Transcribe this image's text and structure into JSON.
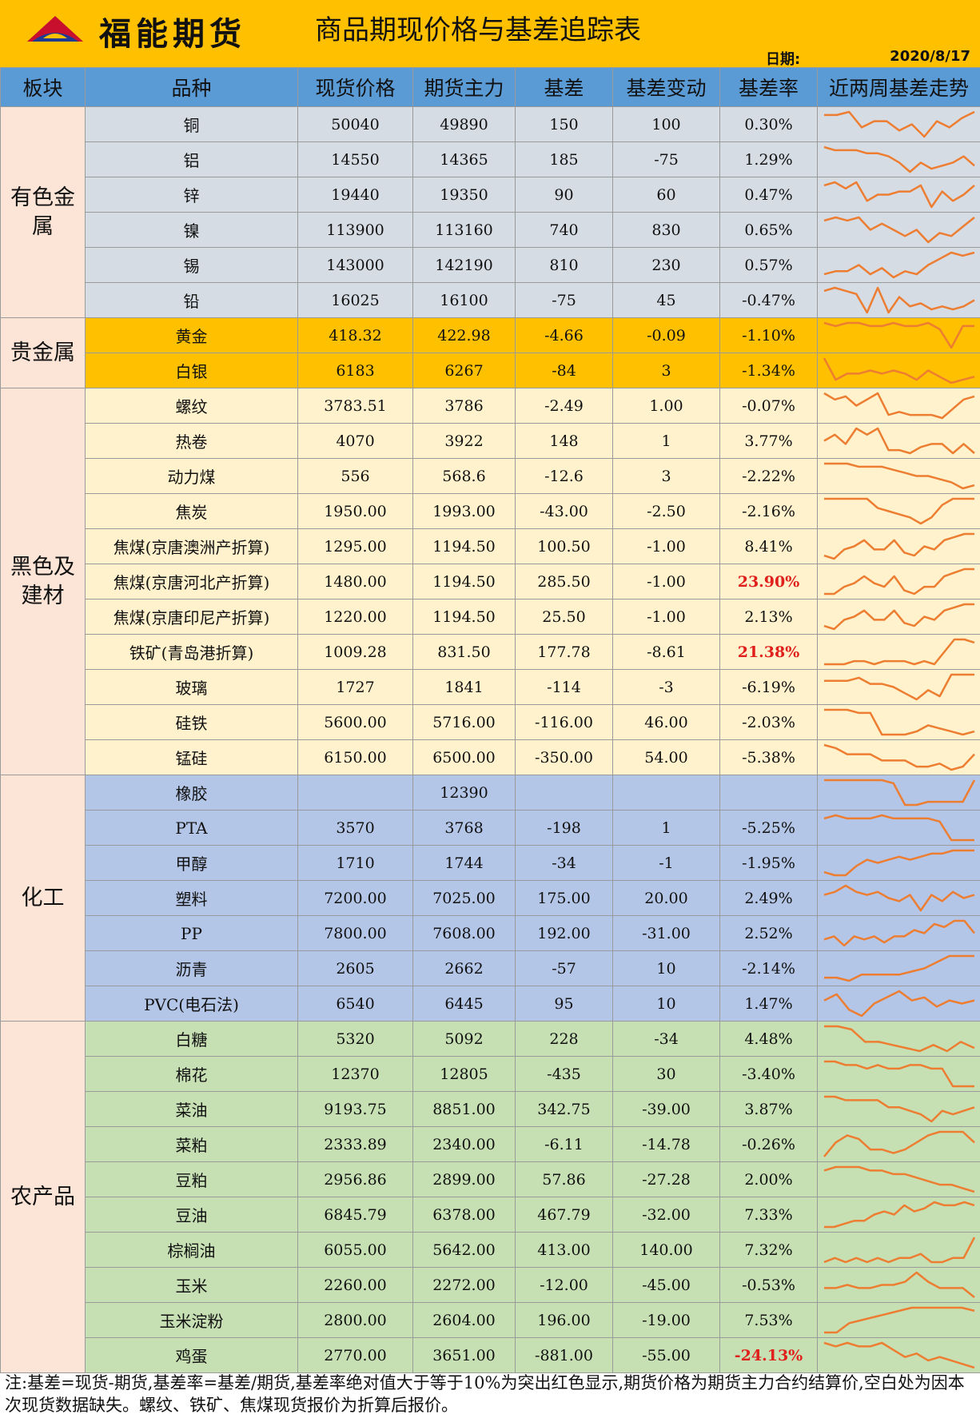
{
  "header": {
    "company": "福能期货",
    "title": "商品期现价格与基差追踪表",
    "date_label": "日期:",
    "date": "2020/8/17"
  },
  "columns": [
    "板块",
    "品种",
    "现货价格",
    "期货主力",
    "基差",
    "基差变动",
    "基差率",
    "近两周基差走势"
  ],
  "colors": {
    "header": "#5B9BD5",
    "band": "#FFC000",
    "sector_cell": "#FCE4D6",
    "metal": "#D6DCE4",
    "precious": "#FFC000",
    "black": "#FFF2CC",
    "chem": "#B4C6E7",
    "agri": "#C6E0B4",
    "sparkline": "#ED7D31",
    "highlight": "#E0201C"
  },
  "groups": [
    {
      "sector": "有色金属",
      "theme": "metal",
      "rows": [
        {
          "name": "铜",
          "spot": "50040",
          "futures": "49890",
          "basis": "150",
          "change": "100",
          "rate": "0.30%",
          "trend": [
            7,
            7,
            8,
            3,
            5,
            5,
            2,
            4,
            0,
            5,
            3,
            6,
            8
          ]
        },
        {
          "name": "铝",
          "spot": "14550",
          "futures": "14365",
          "basis": "185",
          "change": "-75",
          "rate": "1.29%",
          "trend": [
            8,
            7,
            7,
            7,
            6,
            6,
            5,
            3,
            0,
            3,
            1,
            2,
            3,
            5,
            2
          ]
        },
        {
          "name": "锌",
          "spot": "19440",
          "futures": "19350",
          "basis": "90",
          "change": "60",
          "rate": "0.47%",
          "trend": [
            7,
            8,
            6,
            8,
            2,
            4,
            4,
            5,
            5,
            7,
            0,
            5,
            2,
            4,
            7
          ]
        },
        {
          "name": "镍",
          "spot": "113900",
          "futures": "113160",
          "basis": "740",
          "change": "830",
          "rate": "0.65%",
          "trend": [
            7,
            8,
            7,
            8,
            4,
            6,
            4,
            2,
            4,
            0,
            3,
            2,
            5,
            8
          ]
        },
        {
          "name": "锡",
          "spot": "143000",
          "futures": "142190",
          "basis": "810",
          "change": "230",
          "rate": "0.57%",
          "trend": [
            1,
            2,
            2,
            4,
            1,
            3,
            0,
            2,
            1,
            4,
            6,
            8,
            7,
            8
          ]
        },
        {
          "name": "铅",
          "spot": "16025",
          "futures": "16100",
          "basis": "-75",
          "change": "45",
          "rate": "-0.47%",
          "trend": [
            7,
            8,
            7,
            6,
            0,
            8,
            0,
            5,
            2,
            3,
            1,
            2,
            1,
            2,
            4
          ]
        }
      ]
    },
    {
      "sector": "贵金属",
      "theme": "prec",
      "rows": [
        {
          "name": "黄金",
          "spot": "418.32",
          "futures": "422.98",
          "basis": "-4.66",
          "change": "-0.09",
          "rate": "-1.10%",
          "trend": [
            8,
            7,
            8,
            8,
            7,
            7,
            8,
            7,
            7,
            8,
            6,
            0,
            7,
            7
          ]
        },
        {
          "name": "白银",
          "spot": "6183",
          "futures": "6267",
          "basis": "-84",
          "change": "3",
          "rate": "-1.34%",
          "trend": [
            8,
            1,
            3,
            3,
            4,
            3,
            4,
            3,
            1,
            4,
            2,
            0,
            1,
            2
          ]
        }
      ]
    },
    {
      "sector": "黑色及建材",
      "theme": "black",
      "rows": [
        {
          "name": "螺纹",
          "spot": "3783.51",
          "futures": "3786",
          "basis": "-2.49",
          "change": "1.00",
          "rate": "-0.07%",
          "trend": [
            8,
            6,
            7,
            4,
            6,
            8,
            1,
            2,
            1,
            1,
            1,
            0,
            3,
            6,
            7
          ]
        },
        {
          "name": "热卷",
          "spot": "4070",
          "futures": "3922",
          "basis": "148",
          "change": "1",
          "rate": "3.77%",
          "trend": [
            4,
            6,
            3,
            8,
            6,
            8,
            1,
            1,
            0,
            2,
            3,
            3,
            0,
            3,
            0
          ]
        },
        {
          "name": "动力煤",
          "spot": "556",
          "futures": "568.6",
          "basis": "-12.6",
          "change": "3",
          "rate": "-2.22%",
          "trend": [
            8,
            8,
            8,
            7,
            7,
            7,
            6,
            5,
            4,
            4,
            3,
            2,
            0,
            1
          ]
        },
        {
          "name": "焦炭",
          "spot": "1950.00",
          "futures": "1993.00",
          "basis": "-43.00",
          "change": "-2.50",
          "rate": "-2.16%",
          "trend": [
            8,
            8,
            8,
            8,
            8,
            5,
            4,
            3,
            2,
            0,
            2,
            6,
            8,
            8,
            8
          ]
        },
        {
          "name": "焦煤(京唐澳洲产折算)",
          "spot": "1295.00",
          "futures": "1194.50",
          "basis": "100.50",
          "change": "-1.00",
          "rate": "8.41%",
          "trend": [
            1,
            0,
            3,
            4,
            6,
            3,
            3,
            6,
            2,
            1,
            4,
            3,
            6,
            7,
            8,
            8
          ]
        },
        {
          "name": "焦煤(京唐河北产折算)",
          "spot": "1480.00",
          "futures": "1194.50",
          "basis": "285.50",
          "change": "-1.00",
          "rate": "23.90%",
          "highlight": true,
          "trend": [
            1,
            1,
            3,
            4,
            6,
            4,
            3,
            6,
            2,
            1,
            3,
            3,
            6,
            7,
            8,
            8
          ]
        },
        {
          "name": "焦煤(京唐印尼产折算)",
          "spot": "1220.00",
          "futures": "1194.50",
          "basis": "25.50",
          "change": "-1.00",
          "rate": "2.13%",
          "trend": [
            1,
            0,
            3,
            4,
            6,
            3,
            3,
            6,
            2,
            1,
            4,
            3,
            6,
            7,
            8,
            8
          ]
        },
        {
          "name": "铁矿(青岛港折算)",
          "spot": "1009.28",
          "futures": "831.50",
          "basis": "177.78",
          "change": "-8.61",
          "rate": "21.38%",
          "highlight": true,
          "trend": [
            0,
            0,
            0,
            1,
            1,
            0,
            1,
            1,
            1,
            0,
            1,
            0,
            4,
            8,
            8,
            7
          ]
        },
        {
          "name": "玻璃",
          "spot": "1727",
          "futures": "1841",
          "basis": "-114",
          "change": "-3",
          "rate": "-6.19%",
          "trend": [
            6,
            6,
            6,
            7,
            5,
            5,
            4,
            2,
            0,
            3,
            1,
            8,
            8,
            8
          ]
        },
        {
          "name": "硅铁",
          "spot": "5600.00",
          "futures": "5716.00",
          "basis": "-116.00",
          "change": "46.00",
          "rate": "-2.03%",
          "trend": [
            8,
            8,
            8,
            7,
            7,
            0,
            0,
            0,
            1,
            3,
            2,
            1,
            0,
            1
          ]
        },
        {
          "name": "锰硅",
          "spot": "6150.00",
          "futures": "6500.00",
          "basis": "-350.00",
          "change": "54.00",
          "rate": "-5.38%",
          "trend": [
            8,
            7,
            5,
            5,
            5,
            3,
            3,
            3,
            1,
            1,
            2,
            0,
            1,
            5
          ]
        }
      ]
    },
    {
      "sector": "化工",
      "theme": "chem",
      "rows": [
        {
          "name": "橡胶",
          "spot": "",
          "futures": "12390",
          "basis": "",
          "change": "",
          "rate": "",
          "trend": [
            8,
            8,
            8,
            8,
            8,
            8,
            7,
            0,
            0,
            1,
            1,
            1,
            1,
            8
          ]
        },
        {
          "name": "PTA",
          "spot": "3570",
          "futures": "3768",
          "basis": "-198",
          "change": "1",
          "rate": "-5.25%",
          "trend": [
            7,
            8,
            7,
            7,
            7,
            8,
            7,
            7,
            7,
            7,
            6,
            0,
            0,
            0
          ]
        },
        {
          "name": "甲醇",
          "spot": "1710",
          "futures": "1744",
          "basis": "-34",
          "change": "-1",
          "rate": "-1.95%",
          "trend": [
            1,
            0,
            0,
            3,
            5,
            4,
            5,
            6,
            5,
            6,
            7,
            7,
            8,
            8,
            8
          ]
        },
        {
          "name": "塑料",
          "spot": "7200.00",
          "futures": "7025.00",
          "basis": "175.00",
          "change": "20.00",
          "rate": "2.49%",
          "trend": [
            5,
            6,
            8,
            6,
            5,
            6,
            4,
            3,
            5,
            0,
            5,
            3,
            6,
            4,
            5
          ]
        },
        {
          "name": "PP",
          "spot": "7800.00",
          "futures": "7608.00",
          "basis": "192.00",
          "change": "-31.00",
          "rate": "2.52%",
          "trend": [
            2,
            3,
            0,
            3,
            2,
            3,
            1,
            3,
            3,
            5,
            4,
            7,
            6,
            8,
            8,
            4
          ]
        },
        {
          "name": "沥青",
          "spot": "2605",
          "futures": "2662",
          "basis": "-57",
          "change": "10",
          "rate": "-2.14%",
          "trend": [
            1,
            1,
            0,
            2,
            2,
            2,
            2,
            3,
            4,
            6,
            8,
            8,
            8
          ]
        },
        {
          "name": "PVC(电石法)",
          "spot": "6540",
          "futures": "6445",
          "basis": "95",
          "change": "10",
          "rate": "1.47%",
          "trend": [
            5,
            7,
            2,
            0,
            4,
            6,
            8,
            5,
            6,
            3,
            5,
            4,
            5
          ]
        }
      ]
    },
    {
      "sector": "农产品",
      "theme": "agri",
      "rows": [
        {
          "name": "白糖",
          "spot": "5320",
          "futures": "5092",
          "basis": "228",
          "change": "-34",
          "rate": "4.48%",
          "trend": [
            8,
            8,
            7,
            3,
            3,
            2,
            1,
            0,
            2,
            0,
            3,
            1
          ]
        },
        {
          "name": "棉花",
          "spot": "12370",
          "futures": "12805",
          "basis": "-435",
          "change": "30",
          "rate": "-3.40%",
          "trend": [
            8,
            8,
            7,
            7,
            6,
            7,
            6,
            6,
            7,
            7,
            6,
            6,
            1,
            1,
            1
          ]
        },
        {
          "name": "菜油",
          "spot": "9193.75",
          "futures": "8851.00",
          "basis": "342.75",
          "change": "-39.00",
          "rate": "3.87%",
          "trend": [
            8,
            8,
            7,
            7,
            7,
            7,
            5,
            5,
            4,
            3,
            1,
            4,
            3,
            4,
            5
          ]
        },
        {
          "name": "菜粕",
          "spot": "2333.89",
          "futures": "2340.00",
          "basis": "-6.11",
          "change": "-14.78",
          "rate": "-0.26%",
          "trend": [
            1,
            5,
            7,
            6,
            3,
            3,
            2,
            3,
            5,
            7,
            8,
            8,
            8,
            5
          ]
        },
        {
          "name": "豆粕",
          "spot": "2956.86",
          "futures": "2899.00",
          "basis": "57.86",
          "change": "-27.28",
          "rate": "2.00%",
          "trend": [
            7,
            8,
            8,
            8,
            7,
            7,
            6,
            6,
            5,
            4,
            3,
            3,
            2,
            1
          ]
        },
        {
          "name": "豆油",
          "spot": "6845.79",
          "futures": "6378.00",
          "basis": "467.79",
          "change": "-32.00",
          "rate": "7.33%",
          "trend": [
            0,
            0,
            1,
            2,
            2,
            4,
            5,
            4,
            7,
            5,
            6,
            8,
            7,
            7,
            8,
            7
          ]
        },
        {
          "name": "棕榈油",
          "spot": "6055.00",
          "futures": "5642.00",
          "basis": "413.00",
          "change": "140.00",
          "rate": "7.32%",
          "trend": [
            2,
            3,
            2,
            3,
            2,
            3,
            2,
            3,
            3,
            4,
            2,
            2,
            3,
            3,
            8
          ]
        },
        {
          "name": "玉米",
          "spot": "2260.00",
          "futures": "2272.00",
          "basis": "-12.00",
          "change": "-45.00",
          "rate": "-0.53%",
          "trend": [
            3,
            3,
            4,
            3,
            3,
            4,
            4,
            5,
            8,
            5,
            3,
            3,
            3,
            0
          ]
        },
        {
          "name": "玉米淀粉",
          "spot": "2800.00",
          "futures": "2604.00",
          "basis": "196.00",
          "change": "-19.00",
          "rate": "7.53%",
          "trend": [
            0,
            0,
            3,
            4,
            5,
            6,
            7,
            8,
            8,
            8,
            8,
            8,
            7
          ]
        },
        {
          "name": "鸡蛋",
          "spot": "2770.00",
          "futures": "3651.00",
          "basis": "-881.00",
          "change": "-55.00",
          "rate": "-24.13%",
          "highlight": true,
          "trend": [
            7,
            6,
            7,
            6,
            6,
            7,
            5,
            3,
            4,
            2,
            3,
            2,
            1,
            0
          ]
        }
      ]
    }
  ],
  "footnote": "注:基差=现货-期货,基差率=基差/期货,基差率绝对值大于等于10%为突出红色显示,期货价格为期货主力合约结算价,空白处为因本次现货数据缺失。螺纹、铁矿、焦煤现货报价为折算后报价。"
}
